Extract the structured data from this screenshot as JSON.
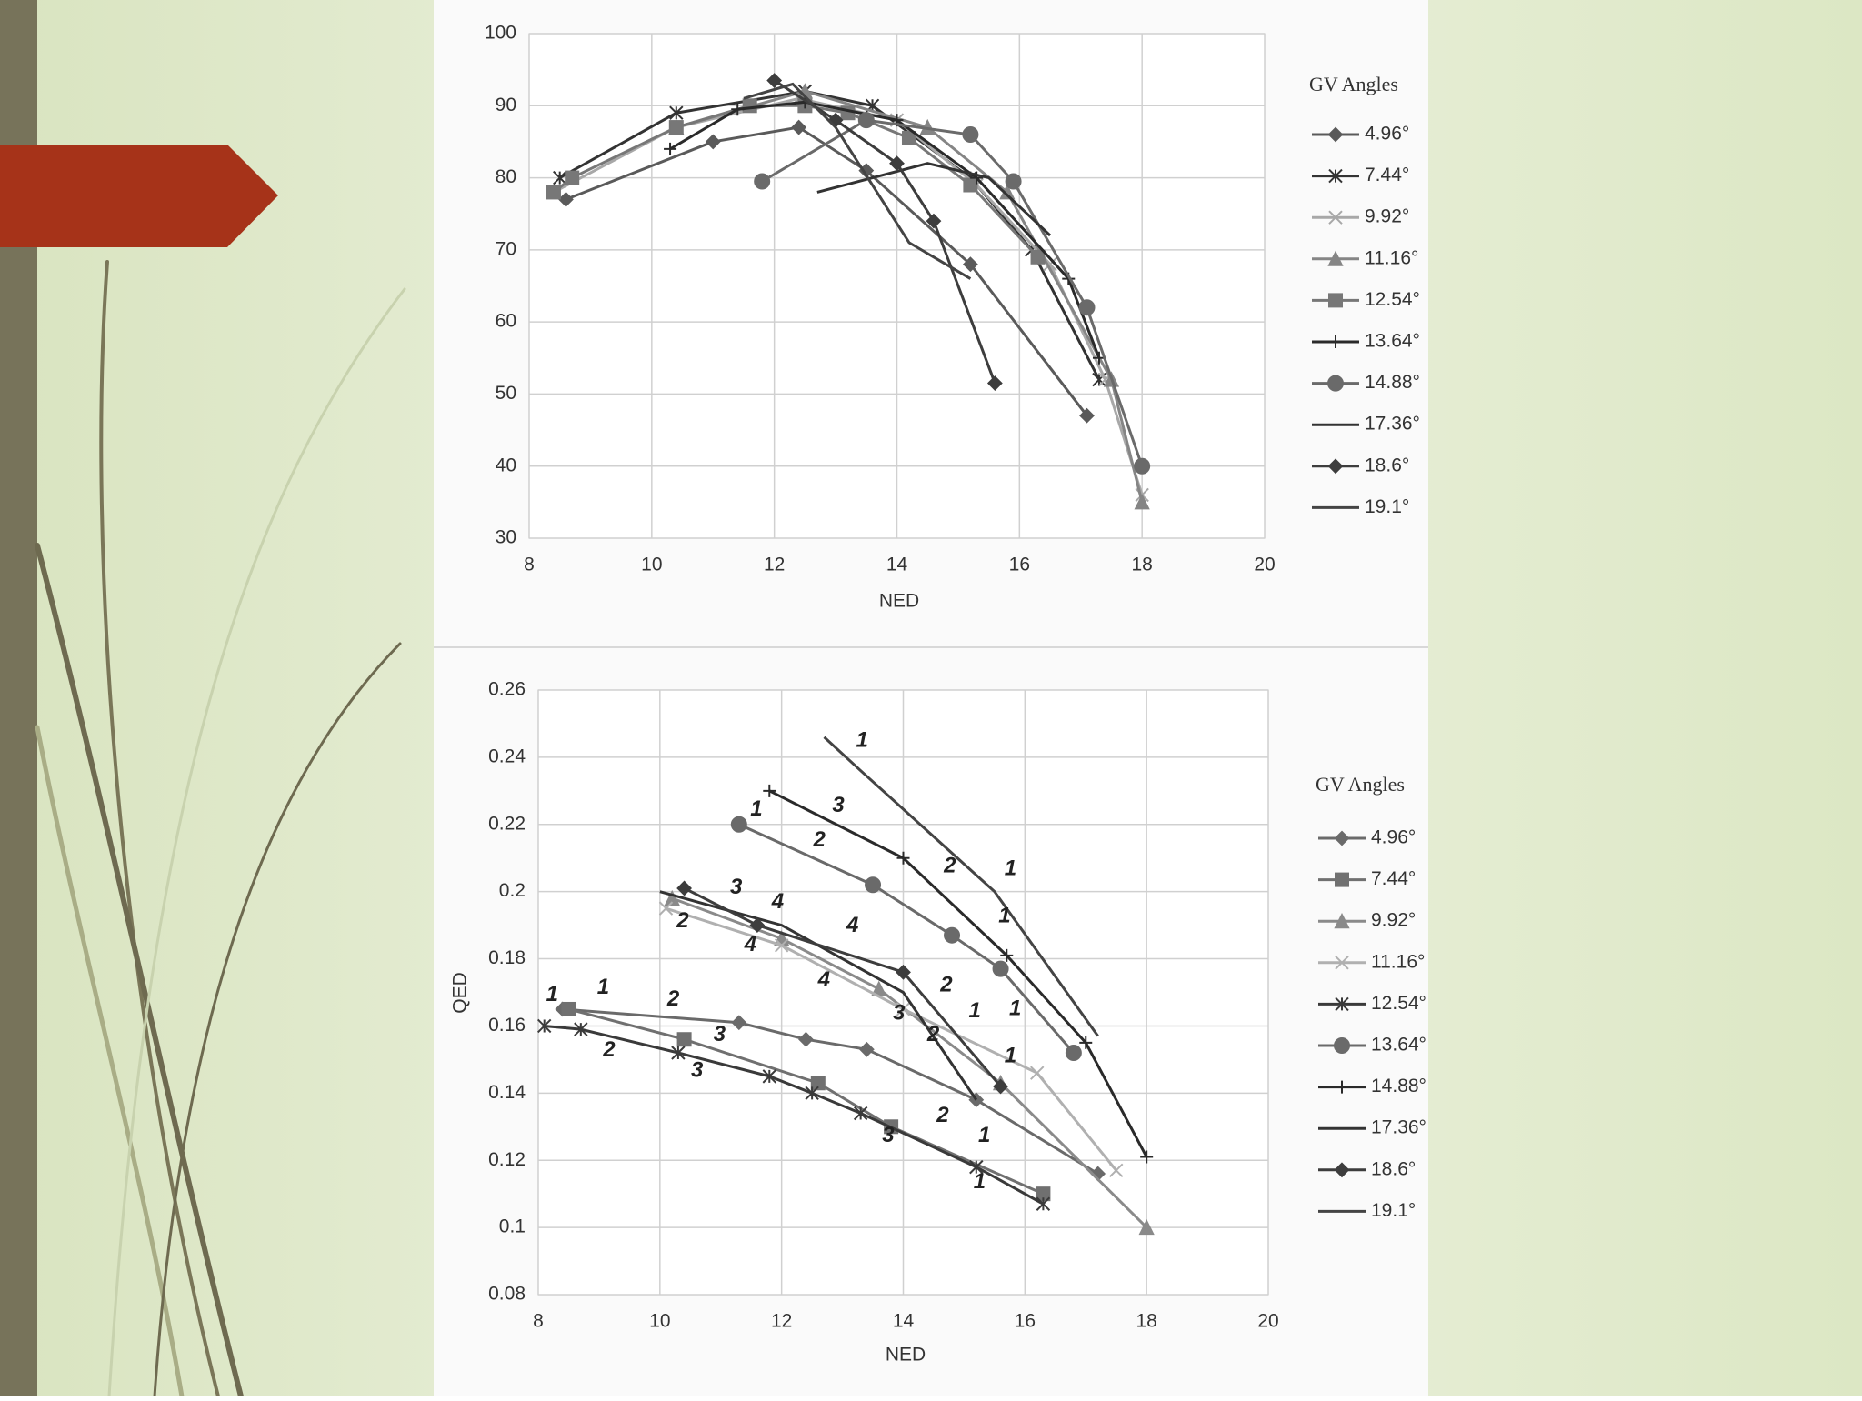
{
  "chart_data": [
    {
      "type": "line",
      "x_label": "NED",
      "legend_title": "GV Angles",
      "xlim": [
        8,
        20
      ],
      "xticks": [
        8,
        10,
        12,
        14,
        16,
        18,
        20
      ],
      "ylim": [
        30,
        100
      ],
      "yticks": [
        30,
        40,
        50,
        60,
        70,
        80,
        90,
        100
      ],
      "grid": true,
      "legend": "right",
      "series": [
        {
          "name": "4.96°",
          "color": "#5a5a5a",
          "marker": "diamond",
          "x": [
            8.6,
            11,
            12.4,
            13.5,
            15.2,
            17.1
          ],
          "values": [
            77,
            85,
            87,
            81,
            68,
            47
          ]
        },
        {
          "name": "7.44°",
          "color": "#333333",
          "marker": "asterisk",
          "x": [
            8.5,
            10.4,
            12.5,
            13.6,
            15.2,
            16.2,
            17.3
          ],
          "values": [
            80,
            89,
            92,
            90,
            80,
            70,
            52
          ]
        },
        {
          "name": "9.92°",
          "color": "#a8a8a8",
          "marker": "x",
          "x": [
            8.4,
            10.4,
            12.4,
            14,
            15.3,
            16.5,
            17.4,
            18
          ],
          "values": [
            78,
            87,
            91,
            88,
            79,
            68,
            52,
            36
          ]
        },
        {
          "name": "11.16°",
          "color": "#858585",
          "marker": "triangle",
          "x": [
            10.4,
            12.5,
            14.5,
            15.8,
            17.5,
            18
          ],
          "values": [
            87,
            92,
            87,
            78,
            52,
            35
          ]
        },
        {
          "name": "12.54°",
          "color": "#777777",
          "marker": "square",
          "x": [
            8.4,
            8.7,
            10.4,
            11.6,
            12.5,
            13.2,
            14.2,
            15.2,
            16.3
          ],
          "values": [
            78,
            80,
            87,
            90,
            90,
            89,
            85.5,
            79,
            69
          ]
        },
        {
          "name": "13.64°",
          "color": "#2a2a2a",
          "marker": "plus",
          "x": [
            10.3,
            11.4,
            12.5,
            14,
            15.3,
            16.8,
            17.3
          ],
          "values": [
            84,
            89.5,
            90.5,
            88,
            80,
            66,
            55
          ]
        },
        {
          "name": "14.88°",
          "color": "#6a6a6a",
          "marker": "circle",
          "x": [
            11.8,
            13.5,
            15.2,
            15.9,
            17.1,
            18
          ],
          "values": [
            79.5,
            88,
            86,
            79.5,
            62,
            40
          ]
        },
        {
          "name": "17.36°",
          "color": "#333333",
          "marker": "none",
          "x": [
            12.7,
            14.5,
            15.5,
            16.5
          ],
          "values": [
            78,
            82,
            80,
            72
          ]
        },
        {
          "name": "18.6°",
          "color": "#3d3d3d",
          "marker": "diamond",
          "x": [
            12,
            13,
            14,
            14.6,
            15.6
          ],
          "values": [
            93.5,
            88,
            82,
            74,
            51.5
          ]
        },
        {
          "name": "19.1°",
          "color": "#444444",
          "marker": "none",
          "x": [
            11.5,
            12.3,
            13,
            14.2,
            15.2
          ],
          "values": [
            91,
            93,
            87,
            71,
            66
          ]
        }
      ]
    },
    {
      "type": "line",
      "x_label": "NED",
      "y_label": "QED",
      "legend_title": "GV Angles",
      "xlim": [
        8,
        20
      ],
      "xticks": [
        8,
        10,
        12,
        14,
        16,
        18,
        20
      ],
      "ylim": [
        0.08,
        0.26
      ],
      "yticks": [
        0.08,
        0.1,
        0.12,
        0.14,
        0.16,
        0.18,
        0.2,
        0.22,
        0.24,
        0.26
      ],
      "grid": true,
      "legend": "right",
      "contour_labels": [
        "1",
        "2",
        "3",
        "4"
      ],
      "series": [
        {
          "name": "4.96°",
          "color": "#6a6a6a",
          "marker": "diamond",
          "x": [
            8.4,
            11.3,
            12.4,
            13.4,
            15.2,
            17.2
          ],
          "values": [
            0.165,
            0.161,
            0.156,
            0.153,
            0.138,
            0.116
          ]
        },
        {
          "name": "7.44°",
          "color": "#707070",
          "marker": "square",
          "x": [
            8.5,
            10.4,
            12.6,
            13.8,
            16.3
          ],
          "values": [
            0.165,
            0.156,
            0.143,
            0.13,
            0.11
          ]
        },
        {
          "name": "9.92°",
          "color": "#8a8a8a",
          "marker": "triangle",
          "x": [
            10.2,
            12,
            13.6,
            15.6,
            18
          ],
          "values": [
            0.198,
            0.186,
            0.171,
            0.143,
            0.1
          ]
        },
        {
          "name": "11.16°",
          "color": "#b0b0b0",
          "marker": "x",
          "x": [
            10.1,
            12,
            14,
            16.2,
            17.5
          ],
          "values": [
            0.195,
            0.184,
            0.165,
            0.146,
            0.117
          ]
        },
        {
          "name": "12.54°",
          "color": "#3a3a3a",
          "marker": "asterisk",
          "x": [
            8.1,
            8.7,
            10.3,
            11.8,
            12.5,
            13.3,
            15.2,
            16.3
          ],
          "values": [
            0.16,
            0.159,
            0.152,
            0.145,
            0.14,
            0.134,
            0.118,
            0.107
          ]
        },
        {
          "name": "13.64°",
          "color": "#6a6a6a",
          "marker": "circle",
          "x": [
            11.3,
            13.5,
            14.8,
            15.6,
            16.8
          ],
          "values": [
            0.22,
            0.202,
            0.187,
            0.177,
            0.152
          ]
        },
        {
          "name": "14.88°",
          "color": "#2a2a2a",
          "marker": "plus",
          "x": [
            11.8,
            14,
            15.7,
            17,
            18
          ],
          "values": [
            0.23,
            0.21,
            0.181,
            0.155,
            0.121
          ]
        },
        {
          "name": "17.36°",
          "color": "#333333",
          "marker": "none",
          "x": [
            10,
            12,
            14,
            15.2
          ],
          "values": [
            0.2,
            0.19,
            0.17,
            0.138
          ]
        },
        {
          "name": "18.6°",
          "color": "#3d3d3d",
          "marker": "diamond",
          "x": [
            10.4,
            11.6,
            14,
            15.6
          ],
          "values": [
            0.201,
            0.19,
            0.176,
            0.142
          ]
        },
        {
          "name": "19.1°",
          "color": "#444444",
          "marker": "none",
          "x": [
            12.7,
            13.3,
            15.5,
            17.2
          ],
          "values": [
            0.246,
            0.236,
            0.2,
            0.157
          ]
        }
      ]
    }
  ]
}
